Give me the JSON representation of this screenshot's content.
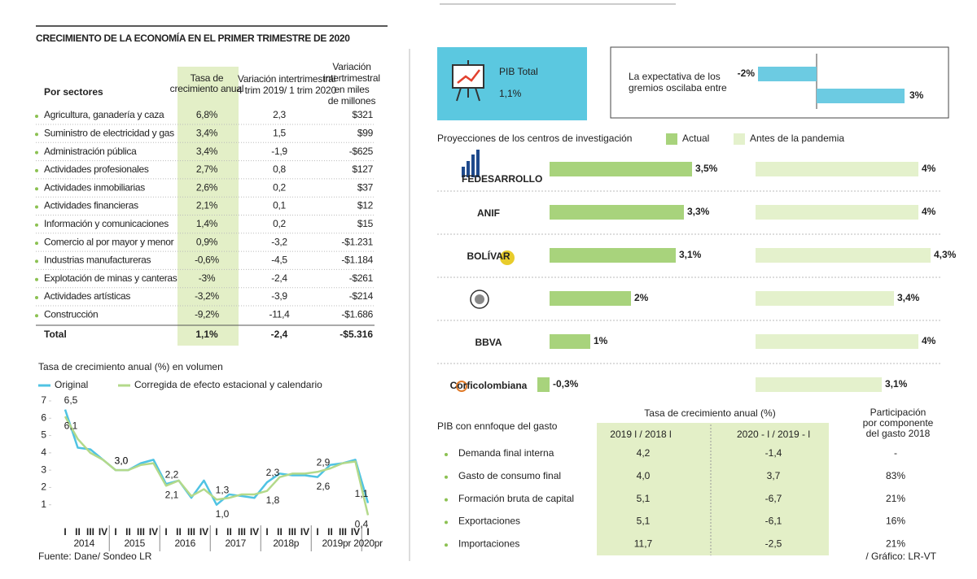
{
  "title": "CRECIMIENTO DE LA ECONOMÍA EN EL PRIMER TRIMESTRE DE 2020",
  "sector_table": {
    "headers": [
      [
        "Por sectores"
      ],
      [
        "Tasa de",
        "crecimiento anual"
      ],
      [
        "Variación intertrimestral",
        "4 trim 2019/ 1 trim 2020"
      ],
      [
        "Variación",
        "intertrimestral",
        "en miles",
        "de millones"
      ]
    ],
    "rows": [
      [
        "Agricultura, ganadería y caza",
        "6,8%",
        "2,3",
        "$321"
      ],
      [
        "Suministro de electricidad y gas",
        "3,4%",
        "1,5",
        "$99"
      ],
      [
        "Administración pública",
        "3,4%",
        "-1,9",
        "-$625"
      ],
      [
        "Actividades profesionales",
        "2,7%",
        "0,8",
        "$127"
      ],
      [
        "Actividades inmobiliarias",
        "2,6%",
        "0,2",
        "$37"
      ],
      [
        "Actividades financieras",
        "2,1%",
        "0,1",
        "$12"
      ],
      [
        "Información y comunicaciones",
        "1,4%",
        "0,2",
        "$15"
      ],
      [
        "Comercio al por mayor y menor",
        "0,9%",
        "-3,2",
        "-$1.231"
      ],
      [
        "Industrias manufactureras",
        "-0,6%",
        "-4,5",
        "-$1.184"
      ],
      [
        "Explotación de minas y canteras",
        "-3%",
        "-2,4",
        "-$261"
      ],
      [
        "Actividades artísticas",
        "-3,2%",
        "-3,9",
        "-$214"
      ],
      [
        "Construcción",
        "-9,2%",
        "-11,4",
        "-$1.686"
      ]
    ],
    "total": [
      "Total",
      "1,1%",
      "-2,4",
      "-$5.316"
    ]
  },
  "chart_data": [
    {
      "type": "line",
      "title": "Tasa de crecimiento anual (%) en volumen",
      "categories": [
        "I",
        "II",
        "III",
        "IV",
        "I",
        "II",
        "III",
        "IV",
        "I",
        "II",
        "III",
        "IV",
        "I",
        "II",
        "III",
        "IV",
        "I",
        "II",
        "III",
        "IV",
        "I",
        "II",
        "III",
        "IV",
        "I"
      ],
      "year_labels": [
        "2014",
        "2015",
        "2016",
        "2017",
        "2018p",
        "2019pr",
        "2020pr"
      ],
      "series": [
        {
          "name": "Original",
          "color": "#4fc3e3",
          "values": [
            6.5,
            4.3,
            4.2,
            3.6,
            3.0,
            3.0,
            3.4,
            3.6,
            2.2,
            2.4,
            1.4,
            2.4,
            1.0,
            1.6,
            1.5,
            1.4,
            2.3,
            2.8,
            2.7,
            2.7,
            2.6,
            3.3,
            3.4,
            3.6,
            1.1
          ],
          "value_labels": [
            "6,5",
            null,
            null,
            null,
            "3,0",
            null,
            null,
            null,
            "2,2",
            null,
            null,
            null,
            "1,0",
            null,
            null,
            null,
            "2,3",
            null,
            null,
            null,
            "2,6",
            null,
            null,
            null,
            "1,1"
          ]
        },
        {
          "name": "Corregida de efecto estacional y calendario",
          "color": "#b3d98a",
          "values": [
            6.1,
            4.8,
            4.0,
            3.6,
            3.0,
            3.0,
            3.3,
            3.4,
            2.1,
            2.4,
            1.5,
            1.9,
            1.3,
            1.4,
            1.6,
            1.6,
            1.8,
            2.6,
            2.8,
            2.8,
            2.9,
            3.1,
            3.4,
            3.5,
            0.4
          ],
          "value_labels": [
            "6,1",
            null,
            null,
            null,
            "3,0",
            null,
            null,
            null,
            "2,1",
            null,
            null,
            null,
            "1,3",
            null,
            null,
            null,
            "1,8",
            null,
            null,
            null,
            "2,9",
            null,
            null,
            null,
            "0,4"
          ]
        }
      ],
      "ylim": [
        0,
        7
      ],
      "yticks": [
        1,
        2,
        3,
        4,
        5,
        6,
        7
      ]
    },
    {
      "type": "bar",
      "orientation": "horizontal",
      "title": [
        "La expectativa de los",
        "gremios oscilaba entre"
      ],
      "values": [
        -2,
        3
      ],
      "value_labels": [
        "-2%",
        "3%"
      ],
      "color": "#6ccbe2"
    },
    {
      "type": "bar",
      "orientation": "horizontal",
      "title": "Proyecciones de los centros de investigación",
      "categories": [
        "FEDESARROLLO",
        "ANIF",
        "BOLÍVAR",
        null,
        "BBVA",
        "Corficolombiana"
      ],
      "series": [
        {
          "name": "Actual",
          "color": "#a8d37c",
          "values": [
            3.5,
            3.3,
            3.1,
            2,
            1,
            -0.3
          ],
          "value_labels": [
            "3,5%",
            "3,3%",
            "3,1%",
            "2%",
            "1%",
            "-0,3%"
          ]
        },
        {
          "name": "Antes de la pandemia",
          "color": "#e4f1cc",
          "values": [
            4,
            4,
            4.3,
            3.4,
            4,
            3.1
          ],
          "value_labels": [
            "4%",
            "4%",
            "4,3%",
            "3,4%",
            "4%",
            "3,1%"
          ]
        }
      ]
    }
  ],
  "pib_total": {
    "label": "PIB Total",
    "value": "1,1%"
  },
  "spending_table": {
    "title": "PIB con ennfoque del gasto",
    "group_header": "Tasa de crecimiento anual (%)",
    "headers": [
      "2019  l / 2018  l",
      "2020  - l / 2019  - l"
    ],
    "share_header": [
      "Participación",
      "por componente",
      "del gasto 2018"
    ],
    "rows": [
      [
        "Demanda final interna",
        "4,2",
        "-1,4",
        "-"
      ],
      [
        "Gasto de consumo final",
        "4,0",
        "3,7",
        "83%"
      ],
      [
        "Formación bruta de capital",
        "5,1",
        "-6,7",
        "21%"
      ],
      [
        "Exportaciones",
        "5,1",
        "-6,1",
        "16%"
      ],
      [
        "Importaciones",
        "11,7",
        "-2,5",
        "21%"
      ]
    ]
  },
  "source": "Fuente: Dane/ Sondeo LR",
  "credit": "/ Gráfico: LR-VT"
}
